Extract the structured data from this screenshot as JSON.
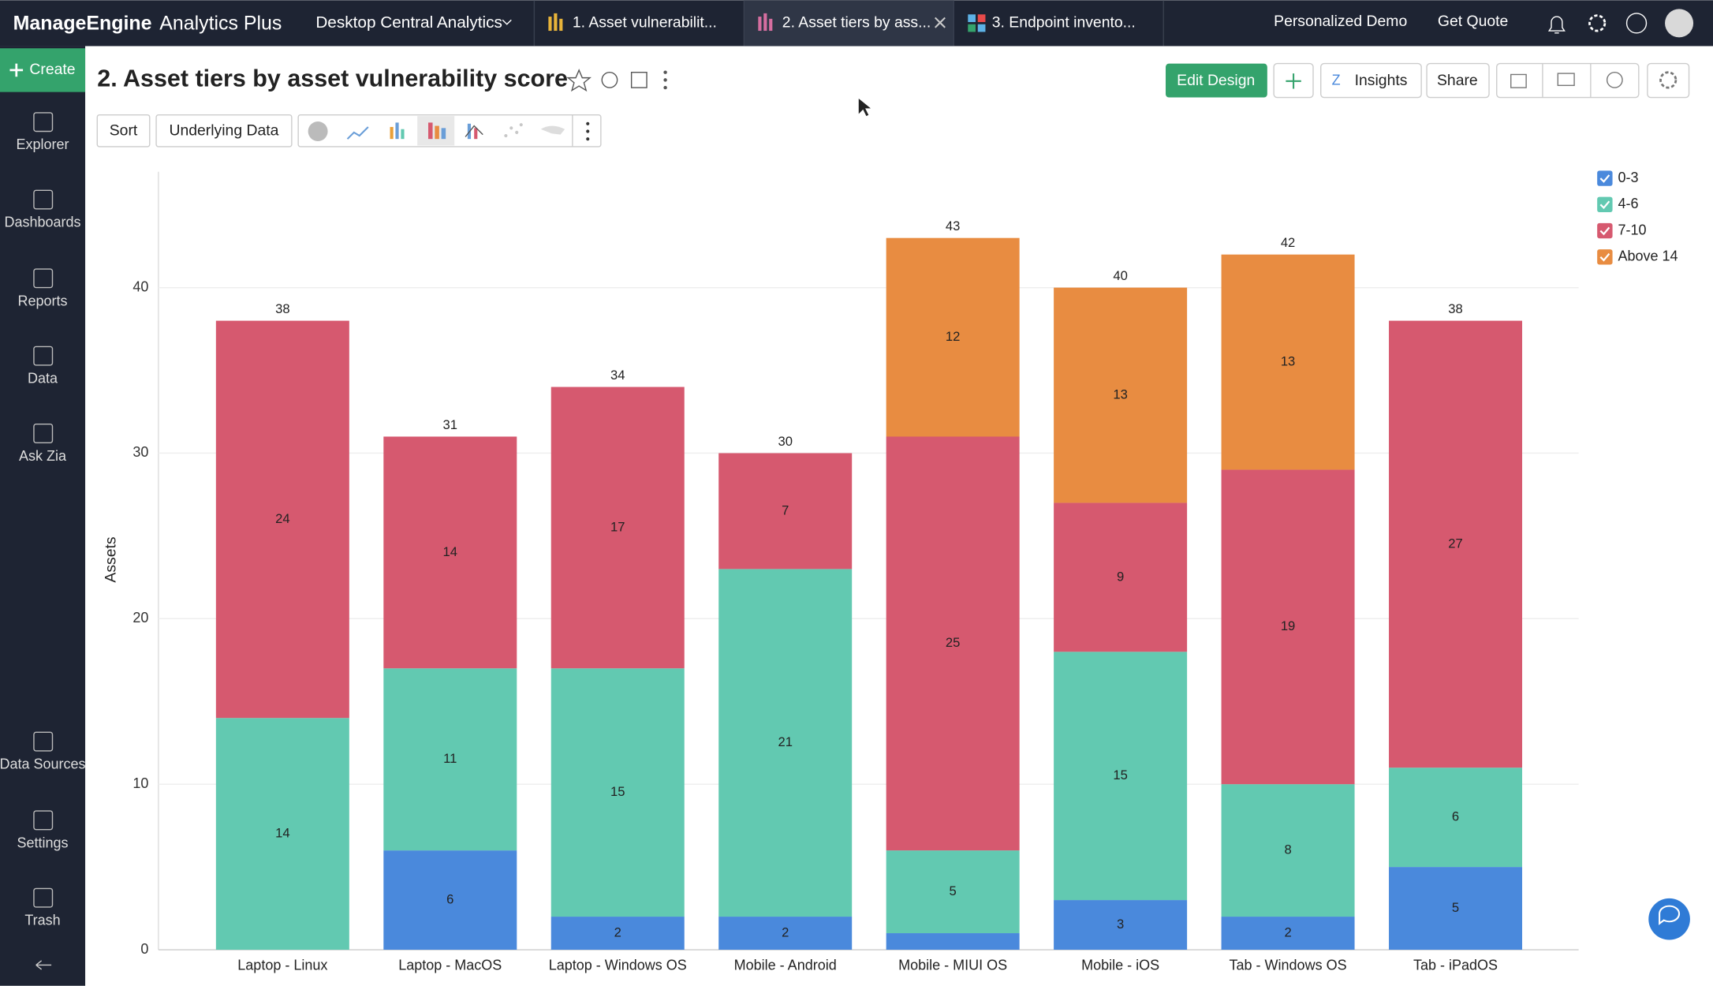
{
  "header": {
    "brand": "ManageEngine",
    "product": "Analytics Plus",
    "workspace": "Desktop Central Analytics",
    "tabs": [
      "1. Asset vulnerabilit...",
      "2. Asset tiers by ass...",
      "3. Endpoint invento..."
    ],
    "links": [
      "Personalized Demo",
      "Get Quote"
    ]
  },
  "sidebar": {
    "create": "Create",
    "items": [
      "Explorer",
      "Dashboards",
      "Reports",
      "Data",
      "Ask Zia",
      "Data Sources",
      "Settings",
      "Trash"
    ]
  },
  "report": {
    "title": "2. Asset tiers by asset vulnerability score",
    "buttons": [
      "Edit Design",
      "Insights",
      "Share"
    ],
    "toolbar": [
      "Sort",
      "Underlying Data"
    ]
  },
  "chart_data": {
    "type": "stacked-bar",
    "y_label": "Assets",
    "categories": [
      "Laptop - Linux",
      "Laptop - MacOS",
      "Laptop - Windows OS",
      "Mobile - Android",
      "Mobile - MIUI OS",
      "Mobile - iOS",
      "Tab - Windows OS",
      "Tab - iPadOS"
    ],
    "series": [
      {
        "name": "0-3",
        "color": "#4a89dc",
        "values": [
          null,
          6,
          2,
          2,
          1,
          3,
          2,
          5
        ]
      },
      {
        "name": "4-6",
        "color": "#62c9b1",
        "values": [
          14,
          11,
          15,
          21,
          5,
          15,
          8,
          6
        ]
      },
      {
        "name": "7-10",
        "color": "#d6596f",
        "values": [
          24,
          14,
          17,
          7,
          25,
          9,
          19,
          27
        ]
      },
      {
        "name": "Above 14",
        "color": "#e88c41",
        "values": [
          null,
          null,
          null,
          null,
          12,
          13,
          13,
          null
        ]
      }
    ],
    "totals": [
      38,
      31,
      34,
      30,
      43,
      40,
      42,
      38
    ],
    "ylim": [
      0,
      47
    ],
    "yticks": [
      0,
      10,
      20,
      30,
      40
    ],
    "grid": true,
    "legend": "top-right"
  }
}
